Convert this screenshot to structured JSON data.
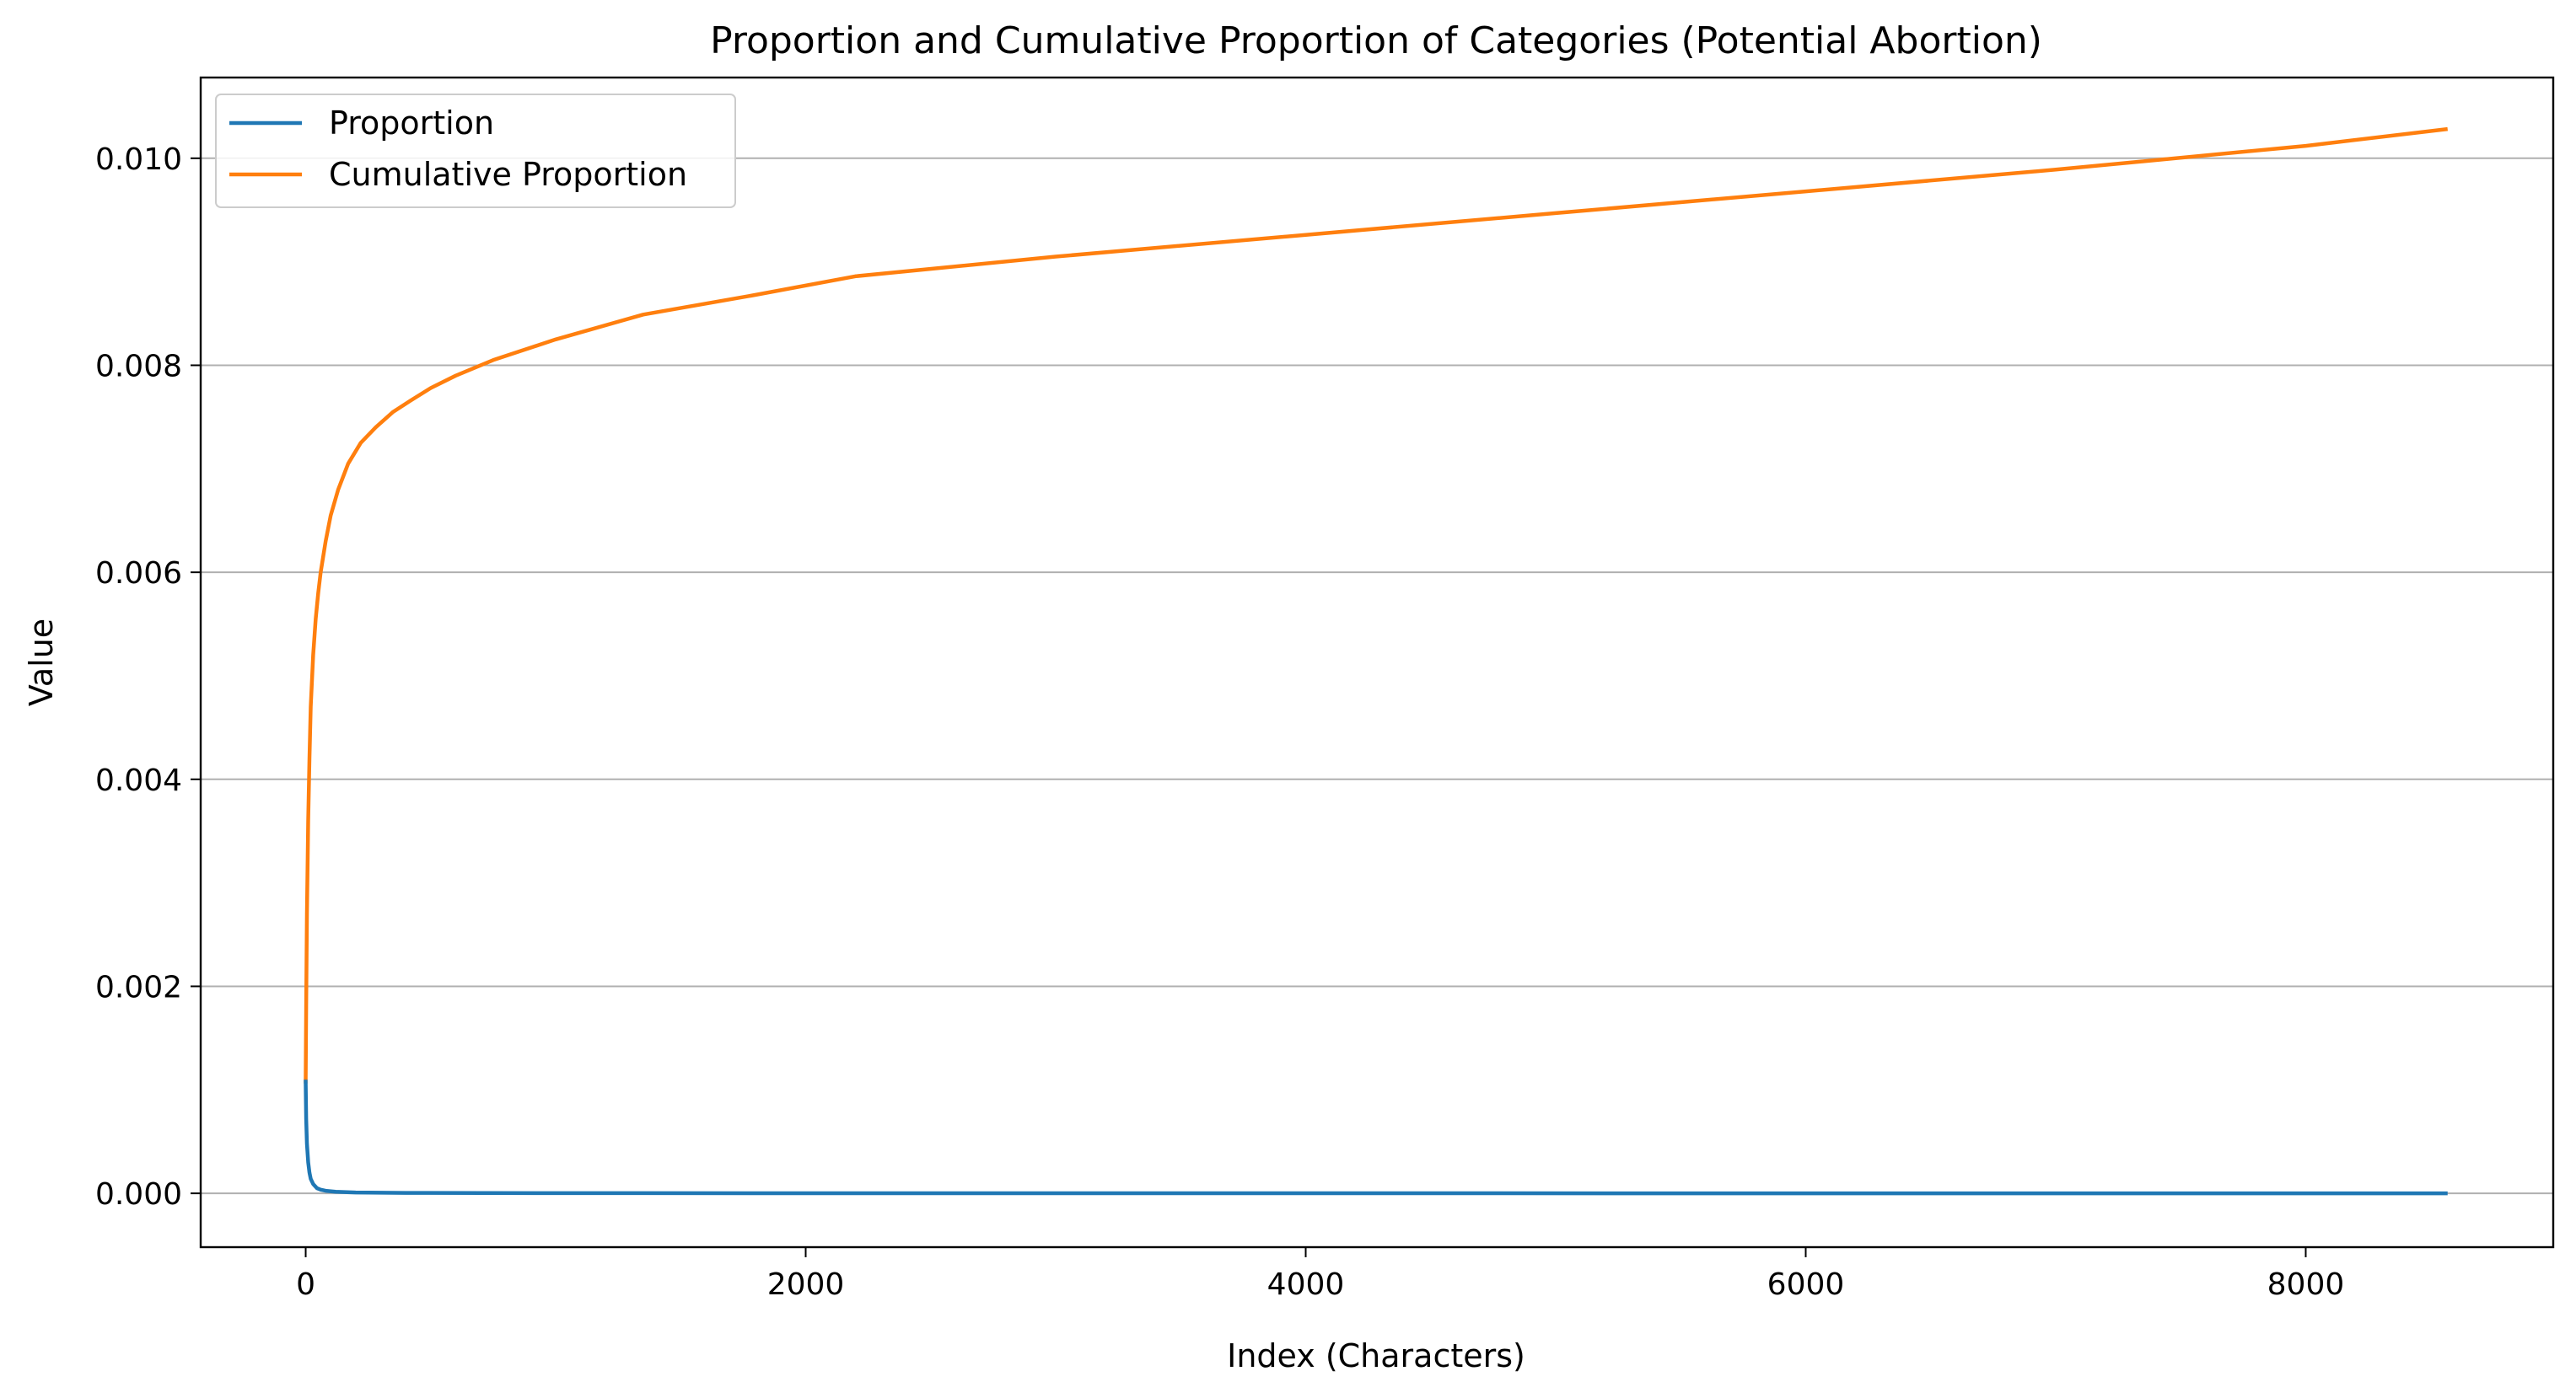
{
  "chart_data": {
    "type": "line",
    "title": "Proportion and Cumulative Proportion of Categories (Potential Abortion)",
    "xlabel": "Index (Characters)",
    "ylabel": "Value",
    "xlim": [
      -420,
      8990
    ],
    "ylim": [
      -0.00052,
      0.01078
    ],
    "xticks": [
      0,
      2000,
      4000,
      6000,
      8000
    ],
    "xtick_labels": [
      "0",
      "2000",
      "4000",
      "6000",
      "8000"
    ],
    "yticks": [
      0.0,
      0.002,
      0.004,
      0.006,
      0.008,
      0.01
    ],
    "ytick_labels": [
      "0.000",
      "0.002",
      "0.004",
      "0.006",
      "0.008",
      "0.010"
    ],
    "grid": "horizontal",
    "legend": "upper left",
    "colors": {
      "Proportion": "#1f77b4",
      "Cumulative Proportion": "#ff7f0e"
    },
    "series": [
      {
        "name": "Proportion",
        "x": [
          0,
          2,
          5,
          10,
          15,
          20,
          30,
          45,
          60,
          80,
          120,
          200,
          400,
          1000,
          3000,
          6000,
          8560
        ],
        "y": [
          0.00108,
          0.00072,
          0.00048,
          0.0003,
          0.0002,
          0.00014,
          9e-05,
          5e-05,
          3.5e-05,
          2.5e-05,
          1.5e-05,
          8e-06,
          4e-06,
          2e-06,
          8e-07,
          5e-07,
          4e-07
        ]
      },
      {
        "name": "Cumulative Proportion",
        "x": [
          0,
          2,
          5,
          10,
          15,
          20,
          30,
          40,
          50,
          60,
          80,
          100,
          130,
          170,
          220,
          280,
          350,
          420,
          500,
          600,
          750,
          1000,
          1350,
          1800,
          2200,
          3000,
          4000,
          5000,
          6000,
          7000,
          8000,
          8560
        ],
        "y": [
          0.00108,
          0.0018,
          0.0027,
          0.0036,
          0.0042,
          0.0047,
          0.0052,
          0.00555,
          0.0058,
          0.006,
          0.0063,
          0.00655,
          0.0068,
          0.00705,
          0.00725,
          0.0074,
          0.00755,
          0.00766,
          0.00778,
          0.0079,
          0.00805,
          0.00825,
          0.00849,
          0.00868,
          0.00886,
          0.00905,
          0.00926,
          0.00947,
          0.00968,
          0.00989,
          0.01012,
          0.01028
        ]
      }
    ]
  }
}
